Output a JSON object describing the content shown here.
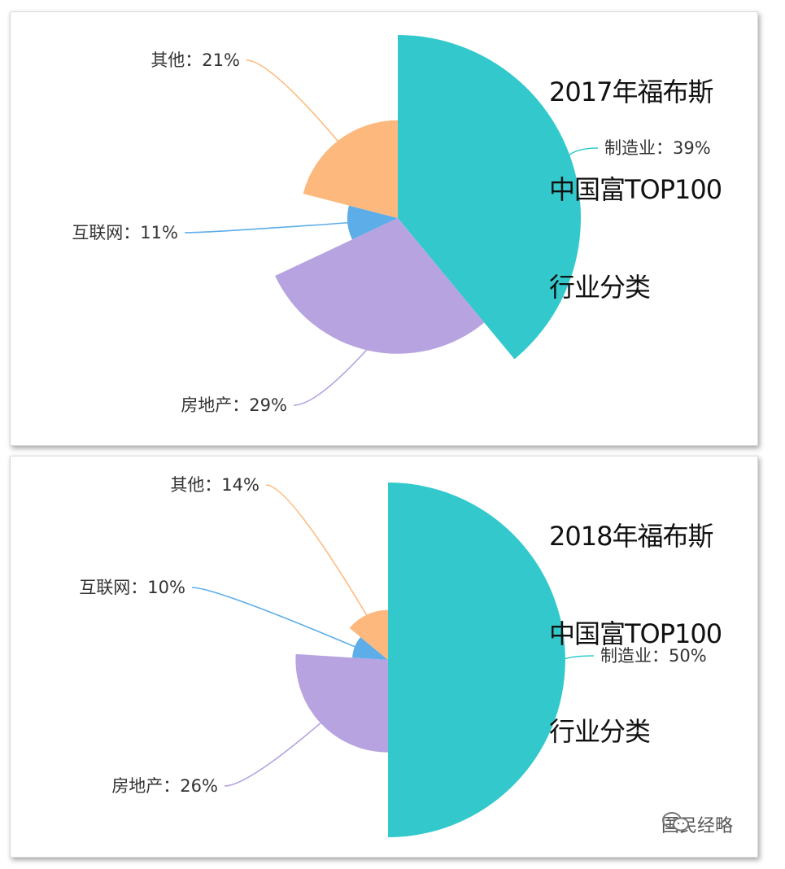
{
  "chart_data": [
    {
      "type": "pie",
      "variant": "rose",
      "title": "2017年福布斯中国富TOP100行业分类",
      "title_lines": [
        "2017年福布斯",
        "中国富TOP100",
        "行业分类"
      ],
      "slices": [
        {
          "name": "制造业",
          "value": 39,
          "label": "制造业：39%",
          "color": "#33c9cc"
        },
        {
          "name": "房地产",
          "value": 29,
          "label": "房地产：29%",
          "color": "#b6a3e0"
        },
        {
          "name": "互联网",
          "value": 11,
          "label": "互联网：11%",
          "color": "#5dade8"
        },
        {
          "name": "其他",
          "value": 21,
          "label": "其他：21%",
          "color": "#fdb97d"
        }
      ]
    },
    {
      "type": "pie",
      "variant": "rose",
      "title": "2018年福布斯中国富TOP100行业分类",
      "title_lines": [
        "2018年福布斯",
        "中国富TOP100",
        "行业分类"
      ],
      "slices": [
        {
          "name": "制造业",
          "value": 50,
          "label": "制造业：50%",
          "color": "#33c9cc"
        },
        {
          "name": "房地产",
          "value": 26,
          "label": "房地产：26%",
          "color": "#b6a3e0"
        },
        {
          "name": "互联网",
          "value": 10,
          "label": "互联网：10%",
          "color": "#5dade8"
        },
        {
          "name": "其他",
          "value": 14,
          "label": "其他：14%",
          "color": "#fdb97d"
        }
      ]
    }
  ],
  "watermark": {
    "text": "国民经略",
    "icon": "wechat-icon"
  }
}
